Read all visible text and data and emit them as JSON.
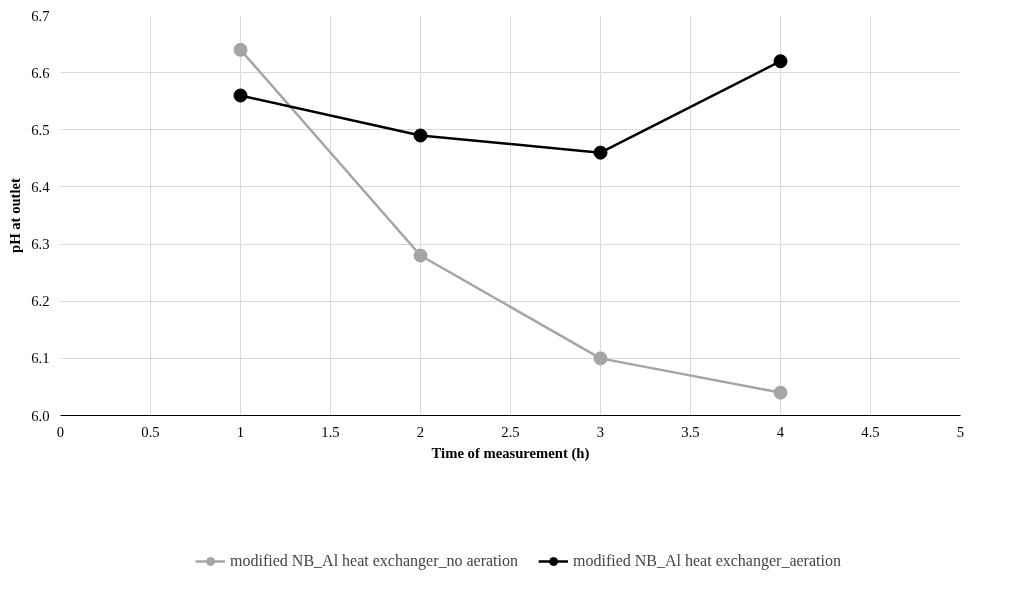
{
  "chart_data": {
    "type": "line",
    "xlabel": "Time of measurement (h)",
    "ylabel": "pH at outlet",
    "x": [
      1,
      2,
      3,
      4
    ],
    "series": [
      {
        "name": "modified NB_Al heat exchanger_no aeration",
        "color": "#a5a5a5",
        "values": [
          6.64,
          6.28,
          6.1,
          6.04
        ]
      },
      {
        "name": "modified NB_Al heat exchanger_aeration",
        "color": "#000000",
        "values": [
          6.56,
          6.49,
          6.46,
          6.62
        ]
      }
    ],
    "xlim": [
      0,
      5
    ],
    "xticks": [
      0,
      0.5,
      1,
      1.5,
      2,
      2.5,
      3,
      3.5,
      4,
      4.5,
      5
    ],
    "ylim": [
      6.0,
      6.7
    ],
    "yticks": [
      {
        "value": 6.0,
        "label": "6.0"
      },
      {
        "value": 6.1,
        "label": "6.1"
      },
      {
        "value": 6.2,
        "label": "6.2"
      },
      {
        "value": 6.3,
        "label": "6.3"
      },
      {
        "value": 6.4,
        "label": "6.4"
      },
      {
        "value": 6.5,
        "label": "6.5"
      },
      {
        "value": 6.6,
        "label": "6.6"
      },
      {
        "value": 6.7,
        "label": "6.7"
      }
    ],
    "grid": true,
    "legend": "bottom",
    "marker": "circle",
    "line_style": "solid"
  }
}
